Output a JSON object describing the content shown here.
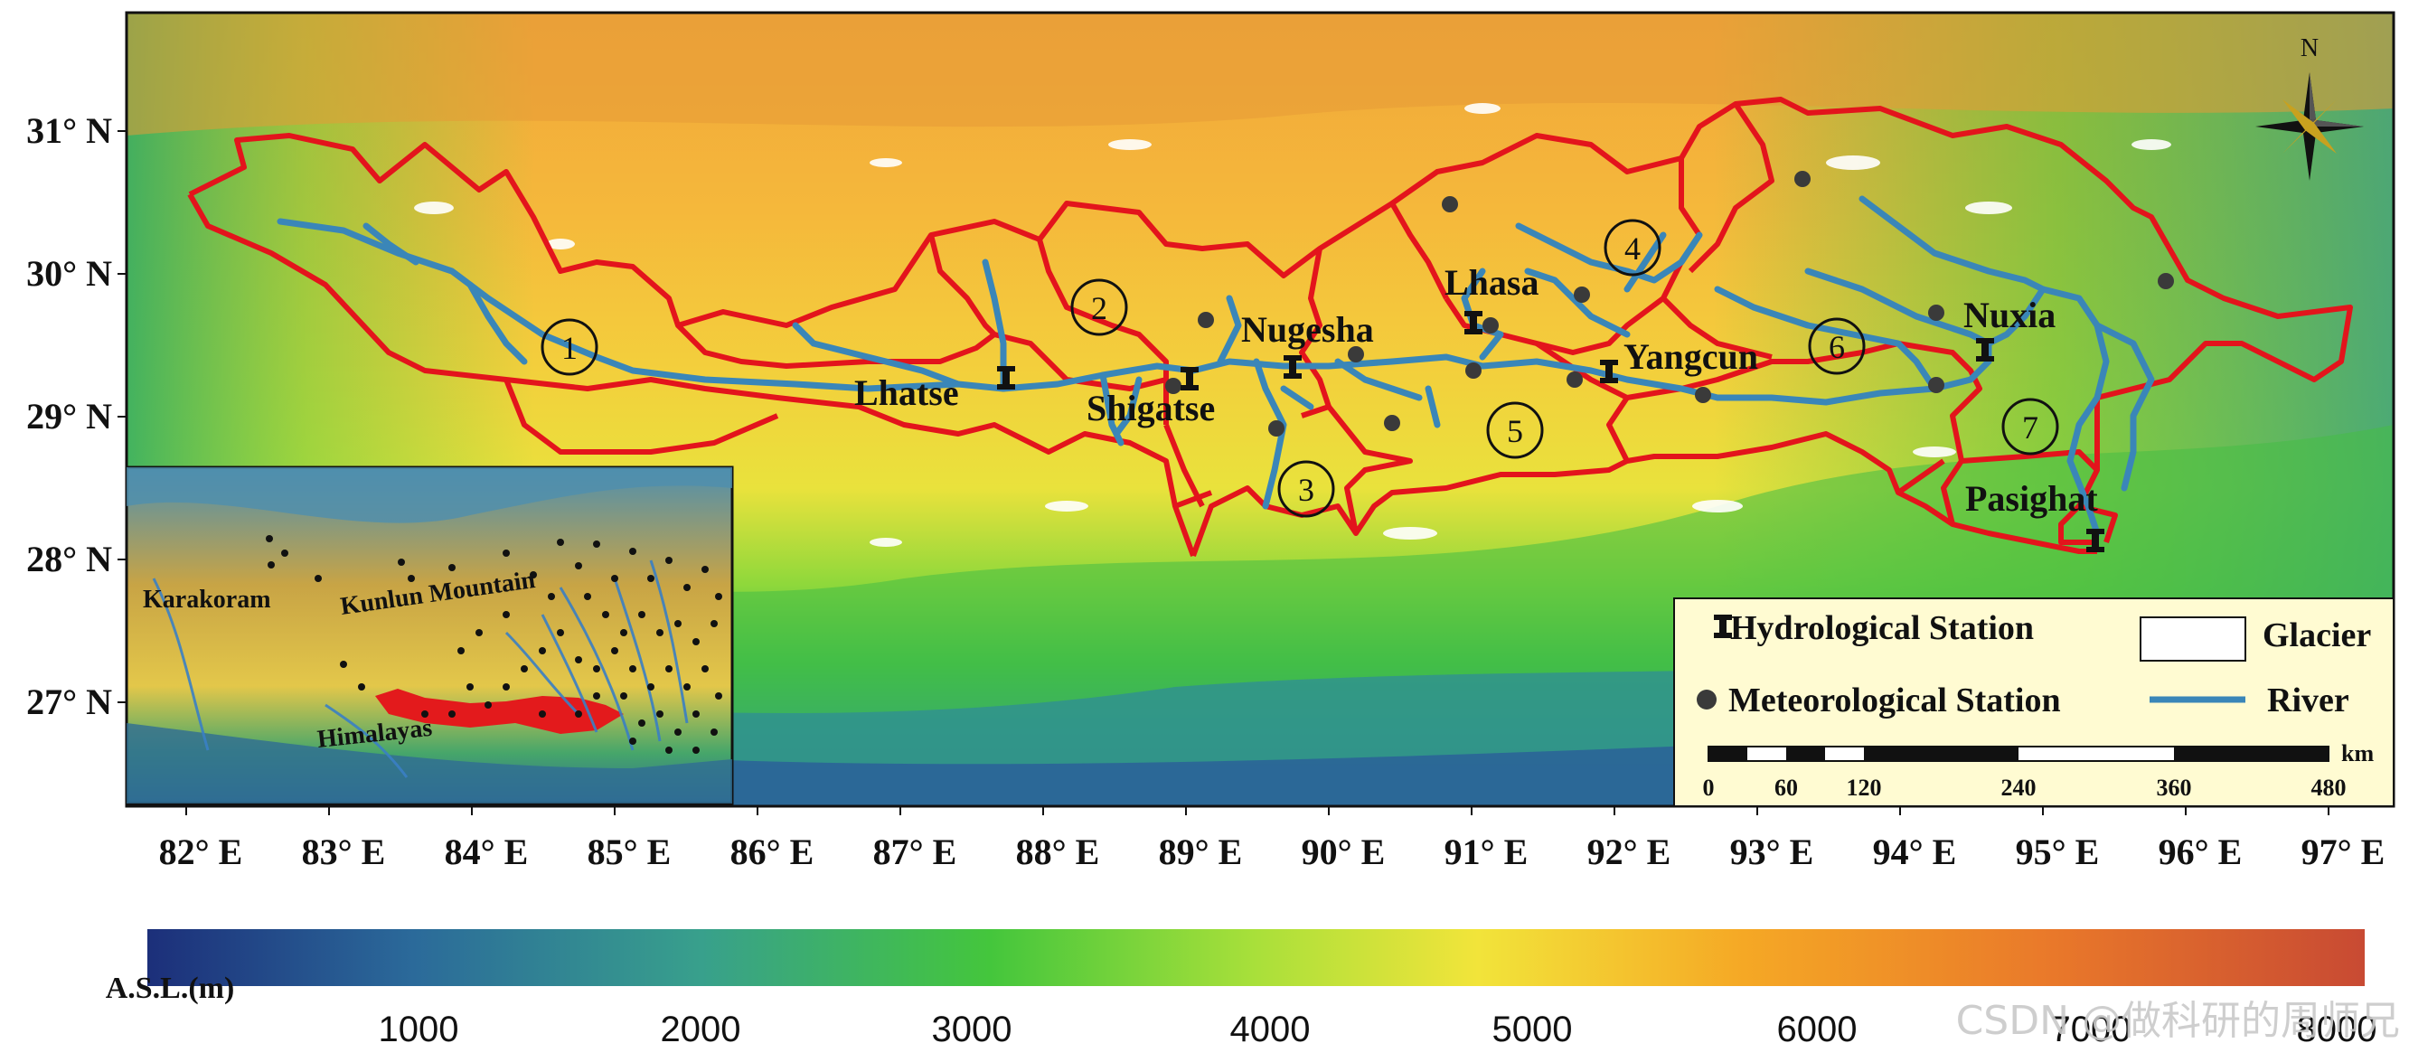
{
  "map": {
    "colors": {
      "basin_boundary": "#e3141c",
      "river": "#3a86b8",
      "station_dark": "#222222",
      "legend_bg": "#fffbd2",
      "inset_tibet": "#e31a1c",
      "ramp": [
        "#1c2f7a",
        "#2b6a9a",
        "#38a08c",
        "#44c63c",
        "#bfe53a",
        "#f2e43a",
        "#f5a825",
        "#e9782a",
        "#c84a33"
      ]
    },
    "north_label": "N",
    "lat_labels": [
      "31° N",
      "30° N",
      "29° N",
      "28° N",
      "27° N"
    ],
    "lon_labels": [
      "82° E",
      "83° E",
      "84° E",
      "85° E",
      "86° E",
      "87° E",
      "88° E",
      "89° E",
      "90° E",
      "91° E",
      "92° E",
      "93° E",
      "94° E",
      "95° E",
      "96° E",
      "97° E"
    ],
    "places": [
      "Lhatse",
      "Shigatse",
      "Nugesha",
      "Lhasa",
      "Yangcun",
      "Nuxia",
      "Pasighat"
    ],
    "basins": [
      "1",
      "2",
      "3",
      "4",
      "5",
      "6",
      "7"
    ],
    "inset_labels": [
      "Karakoram",
      "Kunlun Mountain",
      "Himalayas"
    ],
    "legend": {
      "hydro": "Hydrological Station",
      "meteo": "Meteorological Station",
      "glacier": "Glacier",
      "river": "River",
      "scale_unit": "km",
      "scale_ticks": [
        "0",
        "60",
        "120",
        "240",
        "360",
        "480"
      ]
    },
    "colorbar": {
      "label": "A.S.L.(m)",
      "ticks": [
        "1000",
        "2000",
        "3000",
        "4000",
        "5000",
        "6000",
        "7000",
        "8000"
      ]
    },
    "watermark": "CSDN @做科研的周师兄"
  }
}
